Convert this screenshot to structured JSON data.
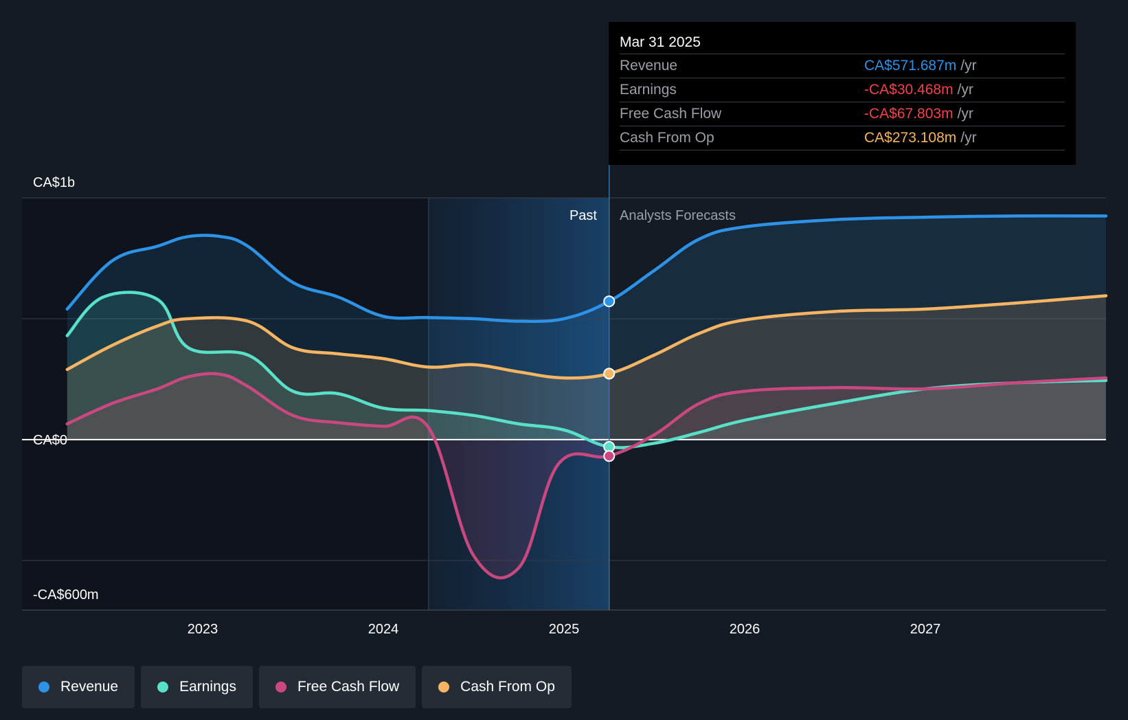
{
  "chart_data": {
    "type": "area",
    "y_axis": {
      "labels": [
        "CA$1b",
        "CA$0",
        "-CA$600m"
      ],
      "ylim": [
        -600,
        1000
      ],
      "unit": "CA$m"
    },
    "x_axis": {
      "ticks": [
        "2023",
        "2024",
        "2025",
        "2026",
        "2027"
      ],
      "tick_values": [
        2023,
        2024,
        2025,
        2026,
        2027
      ]
    },
    "regions": {
      "past_label": "Past",
      "forecast_label": "Analysts Forecasts",
      "divider_x": 2025.25,
      "highlight_start": 2024.25
    },
    "tooltip": {
      "date": "Mar 31 2025",
      "rows": [
        {
          "label": "Revenue",
          "value": "CA$571.687m",
          "unit": "/yr",
          "color": "#2e93e6"
        },
        {
          "label": "Earnings",
          "value": "-CA$30.468m",
          "unit": "/yr",
          "color": "#f0434b"
        },
        {
          "label": "Free Cash Flow",
          "value": "-CA$67.803m",
          "unit": "/yr",
          "color": "#f0434b"
        },
        {
          "label": "Cash From Op",
          "value": "CA$273.108m",
          "unit": "/yr",
          "color": "#f5b563"
        }
      ]
    },
    "series": [
      {
        "name": "Revenue",
        "color": "#2e93e6",
        "points": [
          [
            2022.25,
            540
          ],
          [
            2022.5,
            740
          ],
          [
            2022.75,
            800
          ],
          [
            2022.92,
            840
          ],
          [
            2023.1,
            840
          ],
          [
            2023.25,
            800
          ],
          [
            2023.5,
            650
          ],
          [
            2023.75,
            590
          ],
          [
            2024.0,
            510
          ],
          [
            2024.25,
            505
          ],
          [
            2024.5,
            500
          ],
          [
            2024.75,
            490
          ],
          [
            2025.0,
            500
          ],
          [
            2025.25,
            572
          ],
          [
            2025.5,
            700
          ],
          [
            2025.75,
            830
          ],
          [
            2026.0,
            880
          ],
          [
            2026.5,
            910
          ],
          [
            2027.0,
            920
          ],
          [
            2027.5,
            925
          ],
          [
            2028.0,
            925
          ]
        ]
      },
      {
        "name": "Earnings",
        "color": "#58e0c9",
        "points": [
          [
            2022.25,
            430
          ],
          [
            2022.45,
            590
          ],
          [
            2022.75,
            580
          ],
          [
            2022.92,
            380
          ],
          [
            2023.25,
            350
          ],
          [
            2023.5,
            200
          ],
          [
            2023.75,
            190
          ],
          [
            2024.0,
            130
          ],
          [
            2024.25,
            120
          ],
          [
            2024.5,
            100
          ],
          [
            2024.75,
            65
          ],
          [
            2025.0,
            40
          ],
          [
            2025.25,
            -30
          ],
          [
            2025.5,
            -15
          ],
          [
            2025.75,
            30
          ],
          [
            2026.0,
            80
          ],
          [
            2026.5,
            150
          ],
          [
            2027.0,
            210
          ],
          [
            2027.5,
            235
          ],
          [
            2028.0,
            245
          ]
        ]
      },
      {
        "name": "Free Cash Flow",
        "color": "#c8487f",
        "points": [
          [
            2022.25,
            65
          ],
          [
            2022.5,
            150
          ],
          [
            2022.75,
            210
          ],
          [
            2022.92,
            260
          ],
          [
            2023.1,
            270
          ],
          [
            2023.25,
            220
          ],
          [
            2023.5,
            100
          ],
          [
            2023.75,
            70
          ],
          [
            2024.0,
            55
          ],
          [
            2024.25,
            50
          ],
          [
            2024.5,
            -480
          ],
          [
            2024.75,
            -530
          ],
          [
            2024.97,
            -100
          ],
          [
            2025.25,
            -68
          ],
          [
            2025.5,
            20
          ],
          [
            2025.75,
            150
          ],
          [
            2026.0,
            200
          ],
          [
            2026.5,
            215
          ],
          [
            2027.0,
            210
          ],
          [
            2027.5,
            235
          ],
          [
            2028.0,
            255
          ]
        ]
      },
      {
        "name": "Cash From Op",
        "color": "#f5b563",
        "points": [
          [
            2022.25,
            290
          ],
          [
            2022.5,
            390
          ],
          [
            2022.75,
            470
          ],
          [
            2022.92,
            500
          ],
          [
            2023.25,
            490
          ],
          [
            2023.5,
            380
          ],
          [
            2023.75,
            355
          ],
          [
            2024.0,
            335
          ],
          [
            2024.25,
            300
          ],
          [
            2024.5,
            310
          ],
          [
            2024.75,
            280
          ],
          [
            2025.0,
            255
          ],
          [
            2025.25,
            273
          ],
          [
            2025.5,
            350
          ],
          [
            2025.75,
            440
          ],
          [
            2026.0,
            495
          ],
          [
            2026.5,
            530
          ],
          [
            2027.0,
            540
          ],
          [
            2027.5,
            565
          ],
          [
            2028.0,
            595
          ]
        ]
      }
    ]
  },
  "legend": {
    "items": [
      {
        "label": "Revenue",
        "color": "#2e93e6"
      },
      {
        "label": "Earnings",
        "color": "#58e0c9"
      },
      {
        "label": "Free Cash Flow",
        "color": "#c8487f"
      },
      {
        "label": "Cash From Op",
        "color": "#f5b563"
      }
    ]
  }
}
